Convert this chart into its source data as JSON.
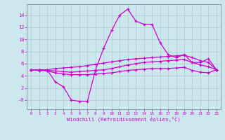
{
  "xlabel": "Windchill (Refroidissement éolien,°C)",
  "bg_color": "#cce8ee",
  "line_color": "#cc00cc",
  "grid_color": "#aacccc",
  "x_values": [
    0,
    1,
    2,
    3,
    4,
    5,
    6,
    7,
    8,
    9,
    10,
    11,
    12,
    13,
    14,
    15,
    16,
    17,
    18,
    19,
    20,
    21,
    22,
    23
  ],
  "ylim": [
    -1.5,
    15.8
  ],
  "yticks": [
    0,
    2,
    4,
    6,
    8,
    10,
    12,
    14
  ],
  "ytick_labels": [
    "-0",
    "2",
    "4",
    "6",
    "8",
    "10",
    "12",
    "14"
  ],
  "data_curve": [
    5.0,
    5.0,
    5.0,
    3.0,
    2.2,
    0.0,
    -0.2,
    -0.2,
    5.0,
    8.5,
    11.5,
    14.0,
    15.0,
    13.0,
    12.5,
    12.5,
    9.5,
    7.5,
    7.0,
    7.5,
    6.2,
    6.2,
    6.8,
    5.0
  ],
  "data_upper": [
    5.0,
    5.0,
    5.0,
    5.2,
    5.3,
    5.4,
    5.5,
    5.7,
    5.9,
    6.1,
    6.3,
    6.5,
    6.7,
    6.8,
    6.9,
    7.0,
    7.1,
    7.2,
    7.3,
    7.4,
    7.0,
    6.5,
    6.2,
    5.0
  ],
  "data_mid": [
    5.0,
    5.0,
    4.9,
    4.8,
    4.7,
    4.6,
    4.7,
    4.8,
    4.9,
    5.0,
    5.2,
    5.5,
    5.8,
    6.0,
    6.2,
    6.3,
    6.4,
    6.5,
    6.6,
    6.7,
    6.2,
    5.8,
    5.5,
    5.0
  ],
  "data_lower": [
    5.0,
    4.9,
    4.8,
    4.5,
    4.3,
    4.2,
    4.2,
    4.2,
    4.3,
    4.4,
    4.5,
    4.7,
    4.9,
    5.0,
    5.1,
    5.2,
    5.2,
    5.2,
    5.3,
    5.4,
    4.9,
    4.6,
    4.5,
    5.0
  ]
}
